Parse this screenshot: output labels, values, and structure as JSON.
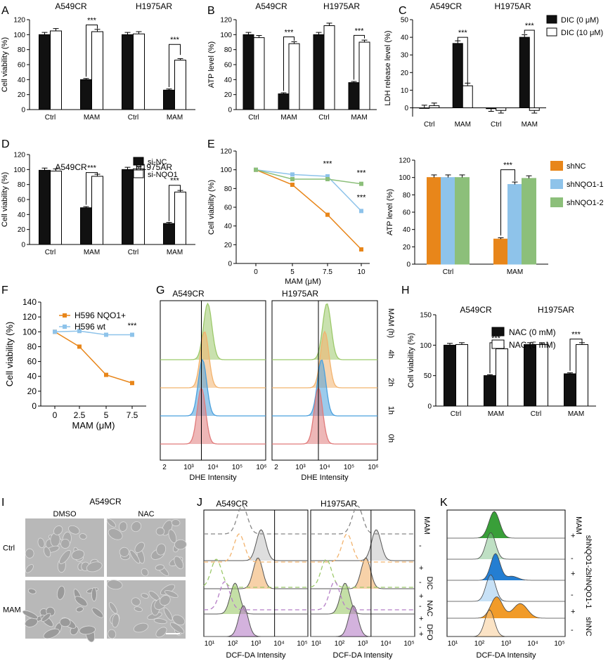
{
  "colors": {
    "black_bar": "#111111",
    "white_bar": "#ffffff",
    "orange": "#e8861a",
    "blue": "#8ec3ea",
    "green": "#8cbf7a",
    "red_hist": "#e07b7b",
    "blue_hist": "#4aa0dd",
    "orange_hist": "#f2b36e",
    "green_hist": "#9cc96b",
    "grey_hist": "#c8c8c8",
    "purple_hist": "#b57fc6",
    "dark_green": "#2e9a2e",
    "mid_green": "#7fc28a",
    "dark_blue": "#1877d0",
    "light_blue": "#8fc3ee",
    "dark_orange": "#f0961e",
    "light_orange": "#f7c88c"
  },
  "panel_letters": {
    "A": "A",
    "B": "B",
    "C": "C",
    "D": "D",
    "E": "E",
    "F": "F",
    "G": "G",
    "H": "H",
    "I": "I",
    "J": "J",
    "K": "K"
  },
  "chart_data": [
    {
      "id": "A",
      "type": "bar",
      "ylabel": "Cell viability (%)",
      "ylim": [
        0,
        120
      ],
      "yticks": [
        "0",
        "20",
        "40",
        "60",
        "80",
        "100",
        "120"
      ],
      "groups": [
        "A549CR",
        "H1975AR"
      ],
      "categories": [
        "Ctrl",
        "MAM",
        "Ctrl",
        "MAM"
      ],
      "series": [
        {
          "values": [
            100,
            40,
            100,
            26
          ]
        },
        {
          "values": [
            105,
            104,
            101,
            66
          ]
        }
      ],
      "annotations": [
        "***",
        "***"
      ]
    },
    {
      "id": "B",
      "type": "bar",
      "ylabel": "ATP level (%)",
      "ylim": [
        0,
        120
      ],
      "yticks": [
        "0",
        "20",
        "40",
        "60",
        "80",
        "100",
        "120"
      ],
      "groups": [
        "A549CR",
        "H1975AR"
      ],
      "categories": [
        "Ctrl",
        "MAM",
        "Ctrl",
        "MAM"
      ],
      "series": [
        {
          "values": [
            100,
            21,
            100,
            36
          ]
        },
        {
          "values": [
            96,
            88,
            112,
            90
          ]
        }
      ],
      "annotations": [
        "***",
        "***"
      ]
    },
    {
      "id": "C",
      "type": "bar",
      "ylabel": "LDH release level (%)",
      "ylim": [
        -5,
        50
      ],
      "yticks": [
        "0",
        "10",
        "20",
        "30",
        "40",
        "50"
      ],
      "groups": [
        "A549CR",
        "H1975AR"
      ],
      "categories": [
        "Ctrl",
        "MAM",
        "Ctrl",
        "MAM"
      ],
      "legend": [
        "DIC (0 μM)",
        "DIC (10 μM)"
      ],
      "series": [
        {
          "name": "DIC (0 μM)",
          "values": [
            0,
            36.5,
            -0.5,
            40
          ]
        },
        {
          "name": "DIC (10 μM)",
          "values": [
            1.2,
            12.5,
            -1.5,
            -1.5
          ]
        }
      ],
      "annotations": [
        "***",
        "***"
      ]
    },
    {
      "id": "D",
      "type": "bar",
      "ylabel": "Cell viability (%)",
      "ylim": [
        0,
        120
      ],
      "yticks": [
        "0",
        "20",
        "40",
        "60",
        "80",
        "100",
        "120"
      ],
      "groups": [
        "A549CR",
        "H1975AR"
      ],
      "categories": [
        "Ctrl",
        "MAM",
        "Ctrl",
        "MAM"
      ],
      "legend": [
        "si-NC",
        "si-NQO1"
      ],
      "series": [
        {
          "name": "si-NC",
          "values": [
            99,
            49,
            100,
            28
          ]
        },
        {
          "name": "si-NQO1",
          "values": [
            98,
            91,
            101,
            70
          ]
        }
      ],
      "annotations": [
        "***",
        "***"
      ]
    },
    {
      "id": "E",
      "type": "line",
      "ylabel": "Cell viability (%)",
      "xlabel": "MAM (μM)",
      "ylim": [
        0,
        120
      ],
      "yticks": [
        "0",
        "20",
        "40",
        "60",
        "80",
        "100",
        "120"
      ],
      "x": [
        "0",
        "5",
        "7.5",
        "10"
      ],
      "series": [
        {
          "values": [
            100,
            84,
            52,
            15
          ],
          "color": "orange"
        },
        {
          "values": [
            100,
            95,
            93,
            56
          ],
          "color": "blue"
        },
        {
          "values": [
            100,
            90,
            90,
            85
          ],
          "color": "green"
        }
      ],
      "annotations": [
        "***",
        "***",
        "***"
      ]
    },
    {
      "id": "E2",
      "type": "bar",
      "ylabel": "ATP level (%)",
      "ylim": [
        0,
        120
      ],
      "yticks": [
        "0",
        "20",
        "40",
        "60",
        "80",
        "100",
        "120"
      ],
      "categories": [
        "Ctrl",
        "MAM"
      ],
      "legend": [
        "shNC",
        "shNQO1-1",
        "shNQO1-2"
      ],
      "series": [
        {
          "name": "shNC",
          "values": [
            100,
            29
          ]
        },
        {
          "name": "shNQO1-1",
          "values": [
            100,
            92
          ]
        },
        {
          "name": "shNQO1-2",
          "values": [
            100,
            99
          ]
        }
      ],
      "annotations": [
        "***"
      ]
    },
    {
      "id": "F",
      "type": "line",
      "ylabel": "Cell viability (%)",
      "xlabel": "MAM (μM)",
      "ylim": [
        0,
        140
      ],
      "yticks": [
        "0",
        "20",
        "40",
        "60",
        "80",
        "100",
        "120",
        "140"
      ],
      "x": [
        "0",
        "2.5",
        "5",
        "7.5"
      ],
      "legend": [
        "H596 NQO1+",
        "H596 wt"
      ],
      "series": [
        {
          "name": "H596 NQO1+",
          "values": [
            100,
            80,
            42,
            31
          ]
        },
        {
          "name": "H596 wt",
          "values": [
            100,
            101,
            96,
            96
          ]
        }
      ],
      "annotations": [
        "***"
      ]
    },
    {
      "id": "H",
      "type": "bar",
      "ylabel": "Cell viability (%)",
      "ylim": [
        0,
        150
      ],
      "yticks": [
        "0",
        "50",
        "100",
        "150"
      ],
      "groups": [
        "A549CR",
        "H1975AR"
      ],
      "categories": [
        "Ctrl",
        "MAM",
        "Ctrl",
        "MAM"
      ],
      "legend": [
        "NAC (0 mM)",
        "NAC (5 mM)"
      ],
      "series": [
        {
          "name": "NAC (0 mM)",
          "values": [
            100,
            50,
            101,
            53
          ]
        },
        {
          "name": "NAC (5 mM)",
          "values": [
            101,
            94,
            101,
            101
          ]
        }
      ],
      "annotations": [
        "***",
        "***"
      ]
    }
  ],
  "panel_g": {
    "titles": [
      "A549CR",
      "H1975AR"
    ],
    "xlabel": "DHE Intensity",
    "xticks": [
      "2",
      "10³",
      "10⁴",
      "10⁵",
      "10⁶"
    ],
    "row_header": "MAM (h)",
    "rows": [
      "4h",
      "2h",
      "1h",
      "0h"
    ]
  },
  "panel_i": {
    "title": "A549CR",
    "cols": [
      "DMSO",
      "NAC"
    ],
    "rows": [
      "Ctrl",
      "MAM"
    ]
  },
  "panel_j": {
    "titles": [
      "A549CR",
      "H1975AR"
    ],
    "xlabel": "DCF-DA Intensity",
    "xticks": [
      "10¹",
      "10²",
      "10³",
      "10⁴",
      "10⁵"
    ],
    "side_header": "MAM",
    "signs": [
      "-",
      "+",
      "-",
      "+",
      "-",
      "+",
      "-",
      "+"
    ],
    "groups": [
      "DIC",
      "NAC",
      "DFO"
    ]
  },
  "panel_k": {
    "xlabel": "DCF-DA Intensity",
    "xticks": [
      "10¹",
      "10²",
      "10³",
      "10⁴",
      "10⁵"
    ],
    "side_header": "MAM",
    "signs": [
      "+",
      "-",
      "+",
      "-",
      "+",
      "-"
    ],
    "groups": [
      "shNQO1-2",
      "shNQO1-1",
      "shNC"
    ]
  }
}
